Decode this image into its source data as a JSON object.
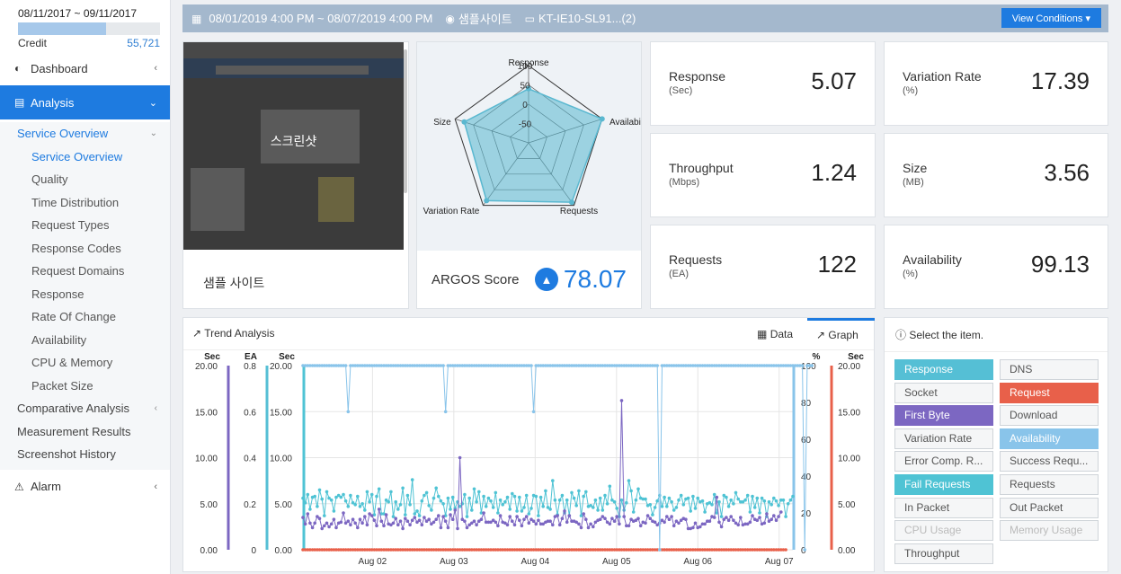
{
  "sidebar": {
    "credit": {
      "date_range": "08/11/2017 ~ 09/11/2017",
      "label": "Credit",
      "value": "55,721",
      "usage_fraction": 0.62
    },
    "nav": [
      {
        "label": "Dashboard",
        "icon": "dashboard-icon"
      },
      {
        "label": "Analysis",
        "icon": "bar-chart-icon"
      },
      {
        "label": "Alarm",
        "icon": "warning-icon"
      }
    ],
    "analysis_items": [
      {
        "label": "Service Overview",
        "children": [
          "Service Overview",
          "Quality",
          "Time Distribution",
          "Request Types",
          "Response Codes",
          "Request Domains",
          "Response",
          "Rate Of Change",
          "Availability",
          "CPU & Memory",
          "Packet Size"
        ]
      },
      {
        "label": "Comparative Analysis"
      },
      {
        "label": "Measurement Results"
      },
      {
        "label": "Screenshot History"
      }
    ]
  },
  "topbar": {
    "date_range": "08/01/2019 4:00 PM ~ 08/07/2019 4:00 PM",
    "site": "샘플사이트",
    "device": "KT-IE10-SL91...(2)",
    "view_button": "View Conditions"
  },
  "screenshot": {
    "overlay_label": "스크린샷",
    "site_name": "샘플 사이트"
  },
  "radar": {
    "axes": [
      "Response",
      "Availability",
      "Requests",
      "Variation Rate",
      "Size"
    ],
    "ticks": [
      "100",
      "50",
      "0",
      "-50"
    ],
    "values": [
      40,
      100,
      90,
      85,
      75
    ],
    "fill_color": "#5ab8d0",
    "score_label": "ARGOS Score",
    "score_value": "78.07"
  },
  "metrics": [
    {
      "name": "Response",
      "unit": "(Sec)",
      "value": "5.07"
    },
    {
      "name": "Variation Rate",
      "unit": "(%)",
      "value": "17.39"
    },
    {
      "name": "Throughput",
      "unit": "(Mbps)",
      "value": "1.24"
    },
    {
      "name": "Size",
      "unit": "(MB)",
      "value": "3.56"
    },
    {
      "name": "Requests",
      "unit": "(EA)",
      "value": "122"
    },
    {
      "name": "Availability",
      "unit": "(%)",
      "value": "99.13"
    }
  ],
  "trend": {
    "title": "Trend Analysis",
    "tabs": [
      "Data",
      "Graph"
    ],
    "active_tab": "Graph",
    "axes": {
      "y1": {
        "title": "Sec",
        "ticks": [
          "20.00",
          "15.00",
          "10.00",
          "5.00",
          "0.00"
        ],
        "color": "#7c67c2"
      },
      "y2": {
        "title": "EA",
        "ticks": [
          "0.8",
          "0.6",
          "0.4",
          "0.2",
          "0"
        ],
        "color": "#55bfd5"
      },
      "y3": {
        "title": "Sec",
        "ticks": [
          "20.00",
          "15.00",
          "10.00",
          "5.00",
          "0.00"
        ],
        "color": "#4fc3d4"
      },
      "y4": {
        "title": "%",
        "ticks": [
          "100",
          "80",
          "60",
          "40",
          "20",
          "0"
        ],
        "color": "#89c4ea"
      },
      "y5": {
        "title": "Sec",
        "ticks": [
          "20.00",
          "15.00",
          "10.00",
          "5.00",
          "0.00"
        ],
        "color": "#e8604a"
      }
    },
    "x_ticks": [
      "Aug 02",
      "Aug 03",
      "Aug 04",
      "Aug 05",
      "Aug 06",
      "Aug 07"
    ]
  },
  "chart_data": {
    "type": "line",
    "x_labels": [
      "Aug 02",
      "Aug 03",
      "Aug 04",
      "Aug 05",
      "Aug 06",
      "Aug 07"
    ],
    "series": [
      {
        "name": "Response",
        "axis": "Sec",
        "color": "#4fc3d4",
        "values": [
          5.6,
          5.1,
          6,
          4.4,
          5.7,
          5.8,
          4.7,
          6.5,
          5.5,
          3.7,
          6.3,
          5.6,
          5.4,
          4.2,
          5.7,
          5.9,
          5.7,
          6,
          5.3,
          4.7,
          5.9,
          5.1,
          4.9,
          5.8,
          4.7,
          5,
          4.3,
          6.3,
          5.2,
          6,
          3.8,
          5.8,
          6.6,
          3.9,
          3.9,
          5.4,
          5.2,
          6.3,
          3.6,
          5.2,
          4.4,
          4.9,
          6.7,
          3.8,
          5.9,
          4.9,
          7.6,
          3.9,
          4.2,
          3.7,
          5.3,
          5.9,
          6.2,
          4.8,
          4.3,
          5.6,
          6.7,
          5.8,
          5.3,
          5,
          3.7,
          5.6,
          4.4,
          5.7,
          4.5,
          5.2,
          4.7,
          5,
          6,
          3.6,
          5.6,
          4.3,
          6.6,
          5.2,
          6.3,
          4,
          5.8,
          4.7,
          5.6,
          5.3,
          4.6,
          6.2,
          4,
          5.4,
          4.9,
          5.2,
          5.7,
          4.4,
          6.1,
          5.8,
          4.2,
          5.7,
          4.2,
          4.6,
          5.9,
          3.9,
          4.5,
          5.9,
          5.8,
          3.7,
          5.7,
          4.7,
          6.4,
          4.6,
          4.4,
          7.5,
          5.4,
          3.8,
          5.4,
          5.9,
          4,
          5.4,
          3.7,
          6.2,
          5.6,
          4.8,
          6.4,
          3.7,
          5.8,
          6.3,
          4.7,
          4.8,
          4.6,
          5.4,
          4.3,
          5.6,
          4.3,
          5.9,
          5,
          6.9,
          5.4,
          5.2,
          4.5,
          3.6,
          5.4,
          4.3,
          5.1,
          7.5,
          6.4,
          4.1,
          5.4,
          6.6,
          5.6,
          5.5,
          5.5,
          4.8,
          4.9,
          3.8,
          4.6,
          5.3,
          5.9,
          4.7,
          5.7,
          4.7,
          5.6,
          5.2,
          4.3,
          4.6,
          5.4,
          5.9,
          4.9,
          5.5,
          5.6,
          4.2,
          5.8,
          4.5,
          5.6,
          5.2,
          5.3,
          4.1,
          5,
          5.1,
          4.9,
          6,
          4,
          5.2,
          3.6,
          5.9,
          5.7,
          4.7,
          5.4,
          5,
          6.2,
          5.5,
          5.2,
          5.2,
          5.4,
          5.9,
          4.1,
          5.8,
          4.6,
          5.6,
          4,
          5.6,
          5.3,
          3.6,
          5.2,
          4.9,
          5.6,
          5.3,
          4.8,
          5.4,
          5.4,
          3.6,
          5,
          5.4,
          5.8
        ]
      },
      {
        "name": "First Byte",
        "axis": "Sec",
        "color": "#7c67c2",
        "values": [
          3.5,
          2.8,
          3.9,
          2.9,
          2.4,
          2.9,
          3.6,
          3.4,
          2.3,
          2.6,
          2.9,
          2.5,
          2.8,
          3.3,
          2.4,
          2.9,
          3,
          4,
          2.9,
          3.1,
          2.7,
          3.3,
          2.9,
          2.4,
          3.3,
          2.9,
          3.6,
          2.7,
          3.9,
          3.7,
          3.2,
          2.6,
          4.4,
          3.1,
          2.6,
          3.8,
          2.8,
          2.7,
          2.9,
          3.4,
          2.7,
          3.1,
          2.3,
          3.4,
          3.1,
          2.7,
          3.2,
          3.5,
          3,
          3.2,
          2.7,
          3.5,
          3.1,
          3.3,
          2.8,
          3,
          3.3,
          3.7,
          2.4,
          3.6,
          3.1,
          2.4,
          3.8,
          3.3,
          4.3,
          2.3,
          10,
          3.3,
          3.1,
          2.4,
          2.7,
          2.9,
          3.1,
          2.7,
          3.1,
          3.3,
          4,
          3,
          3,
          3,
          3.2,
          3,
          2.6,
          3.7,
          3,
          2.9,
          2.7,
          3.6,
          3.1,
          2.7,
          3.6,
          3.2,
          2.6,
          3.3,
          3.6,
          2.9,
          3.3,
          3.1,
          2.8,
          3.2,
          2.8,
          2.8,
          3,
          3.1,
          3.1,
          2.7,
          3.6,
          3.7,
          2.7,
          3.4,
          4.2,
          3,
          3.7,
          3.1,
          3.1,
          3,
          2.8,
          2.4,
          3.9,
          3.3,
          2.4,
          2.8,
          2.5,
          3,
          3.2,
          3.3,
          3.6,
          3.4,
          3,
          2.8,
          3.4,
          3.1,
          3.6,
          2.8,
          16.2,
          3.6,
          2.6,
          2.6,
          3.3,
          3.1,
          3.2,
          3.4,
          2.6,
          3,
          2.9,
          3.7,
          3.4,
          3.1,
          3,
          2.7,
          2.9,
          3.2,
          3,
          3.6,
          3.3,
          3.6,
          2.6,
          3.1,
          2.9,
          3.2,
          3.4,
          3.3,
          2.3,
          2.3,
          2.4,
          2.9,
          2.4,
          2.5,
          2.8,
          2.8,
          3.1,
          3.1,
          3.6,
          3.5,
          5.7,
          3,
          2.5,
          3.3,
          3.5,
          3.2,
          3.6,
          3.2,
          2.9,
          2.7,
          3.5,
          2.7,
          2.8,
          2.8,
          3,
          3.7,
          3.3,
          3.2,
          3.5,
          2.8,
          2.9,
          3.9,
          3.1,
          3.3,
          3.7,
          3.2,
          3.6,
          4.1
        ]
      },
      {
        "name": "Request",
        "axis": "Sec",
        "color": "#e8604a",
        "values": [
          0,
          0,
          0,
          0,
          0,
          0,
          0,
          0,
          0,
          0,
          0,
          0,
          0,
          0,
          0,
          0,
          0,
          0,
          0,
          0,
          0,
          0,
          0,
          0,
          0,
          0,
          0,
          0,
          0,
          0,
          0,
          0,
          0,
          0,
          0,
          0,
          0,
          0,
          0,
          0,
          0,
          0,
          0,
          0,
          0,
          0,
          0,
          0,
          0,
          0,
          0,
          0,
          0,
          0,
          0,
          0,
          0,
          0,
          0,
          0,
          0,
          0,
          0,
          0,
          0,
          0,
          0,
          0,
          0,
          0,
          0,
          0,
          0,
          0,
          0,
          0,
          0,
          0,
          0,
          0,
          0,
          0,
          0,
          0,
          0,
          0,
          0,
          0,
          0,
          0,
          0,
          0,
          0,
          0,
          0,
          0,
          0,
          0,
          0,
          0,
          0,
          0,
          0,
          0,
          0,
          0,
          0,
          0,
          0,
          0,
          0,
          0,
          0,
          0,
          0,
          0,
          0,
          0,
          0,
          0,
          0,
          0,
          0,
          0,
          0,
          0,
          0,
          0,
          0,
          0,
          0,
          0,
          0,
          0,
          0,
          0,
          0,
          0,
          0,
          0,
          0,
          0,
          0,
          0,
          0,
          0,
          0,
          0,
          0,
          0,
          0,
          0,
          0,
          0,
          0,
          0,
          0,
          0,
          0,
          0,
          0,
          0,
          0,
          0,
          0,
          0,
          0,
          0,
          0,
          0,
          0,
          0,
          0,
          0,
          0,
          0,
          0,
          0,
          0,
          0,
          0,
          0,
          0,
          0,
          0,
          0,
          0,
          0,
          0,
          0,
          0,
          0,
          0,
          0,
          0,
          0,
          0,
          0,
          0,
          0,
          0,
          0,
          0,
          0
        ]
      },
      {
        "name": "Availability",
        "axis": "%",
        "color": "#89c4ea",
        "values": [
          100,
          100,
          100,
          100,
          100,
          100,
          100,
          100,
          100,
          100,
          100,
          100,
          100,
          100,
          100,
          100,
          100,
          100,
          100,
          75,
          100,
          100,
          100,
          100,
          100,
          100,
          100,
          100,
          100,
          100,
          100,
          100,
          100,
          100,
          100,
          100,
          100,
          100,
          100,
          100,
          100,
          100,
          100,
          100,
          100,
          100,
          100,
          100,
          100,
          100,
          100,
          100,
          100,
          100,
          100,
          100,
          100,
          100,
          100,
          100,
          75,
          100,
          100,
          100,
          100,
          100,
          100,
          100,
          100,
          100,
          100,
          100,
          100,
          100,
          100,
          100,
          100,
          100,
          100,
          100,
          100,
          100,
          100,
          100,
          100,
          100,
          100,
          100,
          100,
          100,
          100,
          100,
          100,
          100,
          100,
          100,
          100,
          75,
          100,
          100,
          100,
          100,
          100,
          100,
          100,
          100,
          100,
          100,
          100,
          100,
          100,
          100,
          100,
          100,
          100,
          100,
          100,
          100,
          100,
          100,
          100,
          100,
          100,
          100,
          100,
          100,
          100,
          100,
          100,
          100,
          100,
          100,
          100,
          100,
          100,
          100,
          100,
          100,
          100,
          100,
          100,
          100,
          100,
          100,
          100,
          100,
          100,
          100,
          100,
          100,
          0,
          100,
          100,
          100,
          100,
          100,
          100,
          100,
          100,
          100,
          100,
          100,
          100,
          100,
          100,
          100,
          100,
          100,
          100,
          100,
          100,
          100,
          100,
          100,
          100,
          100,
          100,
          100,
          100,
          100,
          100,
          100,
          100,
          100,
          100,
          100,
          100,
          100,
          100,
          100,
          100,
          100,
          100,
          100,
          100,
          100,
          100,
          100,
          100,
          100,
          100,
          100,
          100,
          100,
          100,
          100,
          100,
          100,
          100,
          100,
          100,
          0,
          100,
          100,
          100
        ]
      }
    ]
  },
  "select": {
    "header": "Select the item.",
    "items": [
      {
        "label": "Response",
        "bg": "#55bfd5",
        "fg": "#ffffff",
        "selected": true
      },
      {
        "label": "DNS",
        "bg": "",
        "fg": "",
        "selected": false
      },
      {
        "label": "Socket",
        "bg": "",
        "fg": "",
        "selected": false
      },
      {
        "label": "Request",
        "bg": "#e8604a",
        "fg": "#ffffff",
        "selected": true
      },
      {
        "label": "First Byte",
        "bg": "#7c67c2",
        "fg": "#ffffff",
        "selected": true
      },
      {
        "label": "Download",
        "bg": "",
        "fg": "",
        "selected": false
      },
      {
        "label": "Variation Rate",
        "bg": "",
        "fg": "",
        "selected": false
      },
      {
        "label": "Availability",
        "bg": "#89c4ea",
        "fg": "#ffffff",
        "selected": true
      },
      {
        "label": "Error Comp. R...",
        "bg": "",
        "fg": "",
        "selected": false
      },
      {
        "label": "Success Requ...",
        "bg": "",
        "fg": "",
        "selected": false
      },
      {
        "label": "Fail Requests",
        "bg": "#4fc3d4",
        "fg": "#ffffff",
        "selected": true
      },
      {
        "label": "Requests",
        "bg": "",
        "fg": "",
        "selected": false
      },
      {
        "label": "In Packet",
        "bg": "",
        "fg": "",
        "selected": false
      },
      {
        "label": "Out Packet",
        "bg": "",
        "fg": "",
        "selected": false
      },
      {
        "label": "CPU Usage",
        "bg": "",
        "fg": "",
        "selected": false,
        "disabled": true
      },
      {
        "label": "Memory Usage",
        "bg": "",
        "fg": "",
        "selected": false,
        "disabled": true
      },
      {
        "label": "Throughput",
        "bg": "",
        "fg": "",
        "selected": false
      }
    ]
  }
}
